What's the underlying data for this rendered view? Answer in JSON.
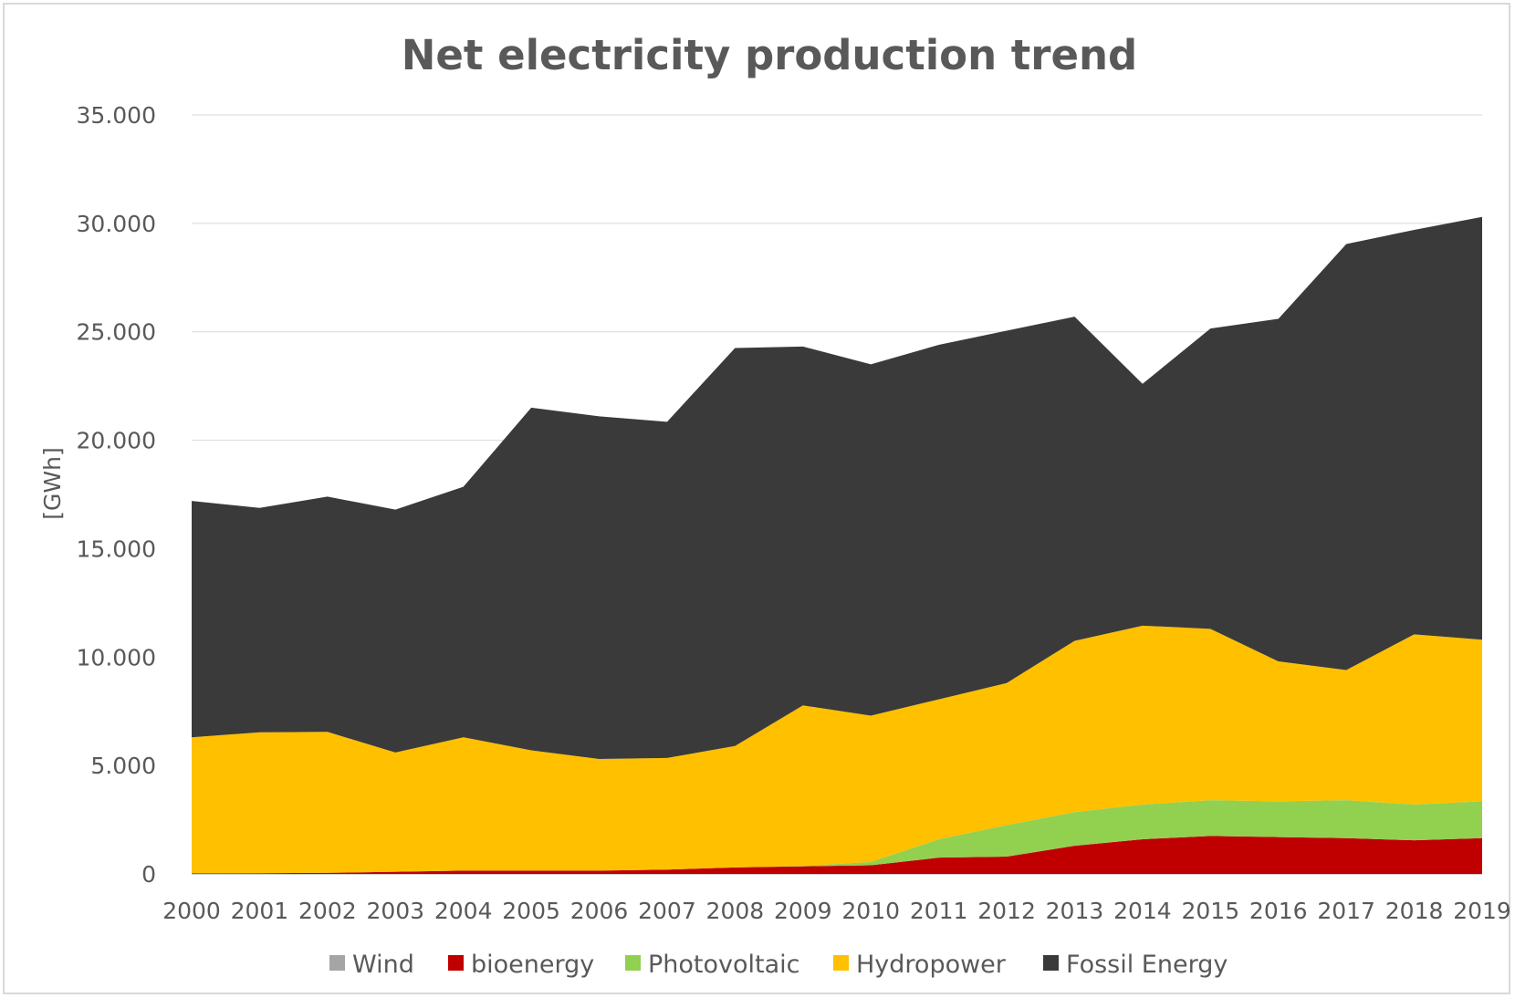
{
  "chart_data": {
    "type": "area",
    "stacked": true,
    "title": "Net electricity production trend",
    "xlabel": "",
    "ylabel": "[GWh]",
    "ylim": [
      0,
      35000
    ],
    "yticks": [
      0,
      5000,
      10000,
      15000,
      20000,
      25000,
      30000,
      35000
    ],
    "ytick_labels": [
      "0",
      "5.000",
      "10.000",
      "15.000",
      "20.000",
      "25.000",
      "30.000",
      "35.000"
    ],
    "grid": true,
    "legend_position": "bottom",
    "categories": [
      "2000",
      "2001",
      "2002",
      "2003",
      "2004",
      "2005",
      "2006",
      "2007",
      "2008",
      "2009",
      "2010",
      "2011",
      "2012",
      "2013",
      "2014",
      "2015",
      "2016",
      "2017",
      "2018",
      "2019"
    ],
    "series": [
      {
        "name": "Wind",
        "color": "#a5a5a5",
        "values": [
          0,
          0,
          0,
          0,
          0,
          0,
          0,
          0,
          0,
          0,
          0,
          0,
          0,
          0,
          0,
          0,
          0,
          0,
          0,
          0
        ]
      },
      {
        "name": "bioenergy",
        "color": "#c00000",
        "values": [
          20,
          30,
          50,
          100,
          150,
          150,
          150,
          200,
          300,
          350,
          400,
          750,
          800,
          1300,
          1600,
          1750,
          1700,
          1650,
          1550,
          1650
        ]
      },
      {
        "name": "Photovoltaic",
        "color": "#92d050",
        "values": [
          0,
          0,
          0,
          0,
          0,
          0,
          0,
          0,
          0,
          20,
          150,
          850,
          1450,
          1550,
          1600,
          1650,
          1650,
          1750,
          1650,
          1700
        ]
      },
      {
        "name": "Hydropower",
        "color": "#ffc000",
        "values": [
          6280,
          6500,
          6500,
          5500,
          6150,
          5550,
          5150,
          5150,
          5600,
          7400,
          6750,
          6450,
          6550,
          7900,
          8250,
          7900,
          6450,
          6000,
          7850,
          7450
        ]
      },
      {
        "name": "Fossil Energy",
        "color": "#3a3a3a",
        "values": [
          10900,
          10350,
          10850,
          11200,
          11550,
          15800,
          15800,
          15500,
          18350,
          16550,
          16200,
          16350,
          16250,
          14950,
          11150,
          13850,
          15800,
          19650,
          18650,
          19500
        ]
      }
    ]
  }
}
